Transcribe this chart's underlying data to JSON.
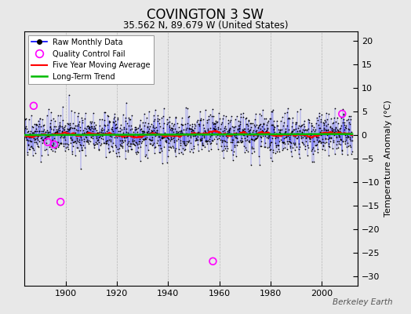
{
  "title": "COVINGTON 3 SW",
  "subtitle": "35.562 N, 89.679 W (United States)",
  "ylabel": "Temperature Anomaly (°C)",
  "watermark": "Berkeley Earth",
  "ylim": [
    -32,
    22
  ],
  "yticks": [
    -30,
    -25,
    -20,
    -15,
    -10,
    -5,
    0,
    5,
    10,
    15,
    20
  ],
  "xlim": [
    1884,
    2014
  ],
  "xticks": [
    1900,
    1920,
    1940,
    1960,
    1980,
    2000
  ],
  "bg_color": "#e8e8e8",
  "plot_bg_color": "#e8e8e8",
  "line_color": "#0000ff",
  "dot_color": "#000000",
  "ma_color": "#ff0000",
  "trend_color": "#00bb00",
  "qc_color": "#ff00ff",
  "seed": 42,
  "start_year": 1884,
  "end_year": 2012,
  "noise_std": 2.2,
  "qc_points": [
    {
      "year": 1887.5,
      "val": 6.2
    },
    {
      "year": 1893.0,
      "val": -1.5
    },
    {
      "year": 1895.5,
      "val": -2.0
    },
    {
      "year": 1898.0,
      "val": -14.2
    },
    {
      "year": 1957.5,
      "val": -26.8
    },
    {
      "year": 2008.0,
      "val": 4.5
    }
  ]
}
